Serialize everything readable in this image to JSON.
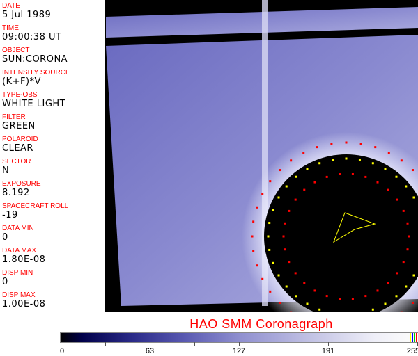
{
  "metadata": [
    {
      "label": "DATE",
      "value": "5 Jul 1989"
    },
    {
      "label": "TIME",
      "value": "09:00:38 UT"
    },
    {
      "label": "OBJECT",
      "value": "SUN:CORONA"
    },
    {
      "label": "INTENSITY SOURCE",
      "value": "(K+F)*V"
    },
    {
      "label": "TYPE-OBS",
      "value": "WHITE LIGHT"
    },
    {
      "label": "FILTER",
      "value": "GREEN"
    },
    {
      "label": "POLAROID",
      "value": "CLEAR"
    },
    {
      "label": "SECTOR",
      "value": "N"
    },
    {
      "label": "EXPOSURE",
      "value": "8.192"
    },
    {
      "label": "SPACECRAFT ROLL",
      "value": "-19"
    },
    {
      "label": "DATA MIN",
      "value": "0"
    },
    {
      "label": "DATA MAX",
      "value": "1.80E-08"
    },
    {
      "label": "DISP MIN",
      "value": "0"
    },
    {
      "label": "DISP MAX",
      "value": "1.00E-08"
    }
  ],
  "title": "HAO   SMM Coronagraph",
  "colorbar": {
    "ticks": [
      "0",
      "63",
      "127",
      "191",
      "255"
    ],
    "colormap_end": "#fafafa",
    "colormap_start": "#000000"
  },
  "colors": {
    "label": "#ff0000",
    "image_blue": "#5a5ab2"
  }
}
